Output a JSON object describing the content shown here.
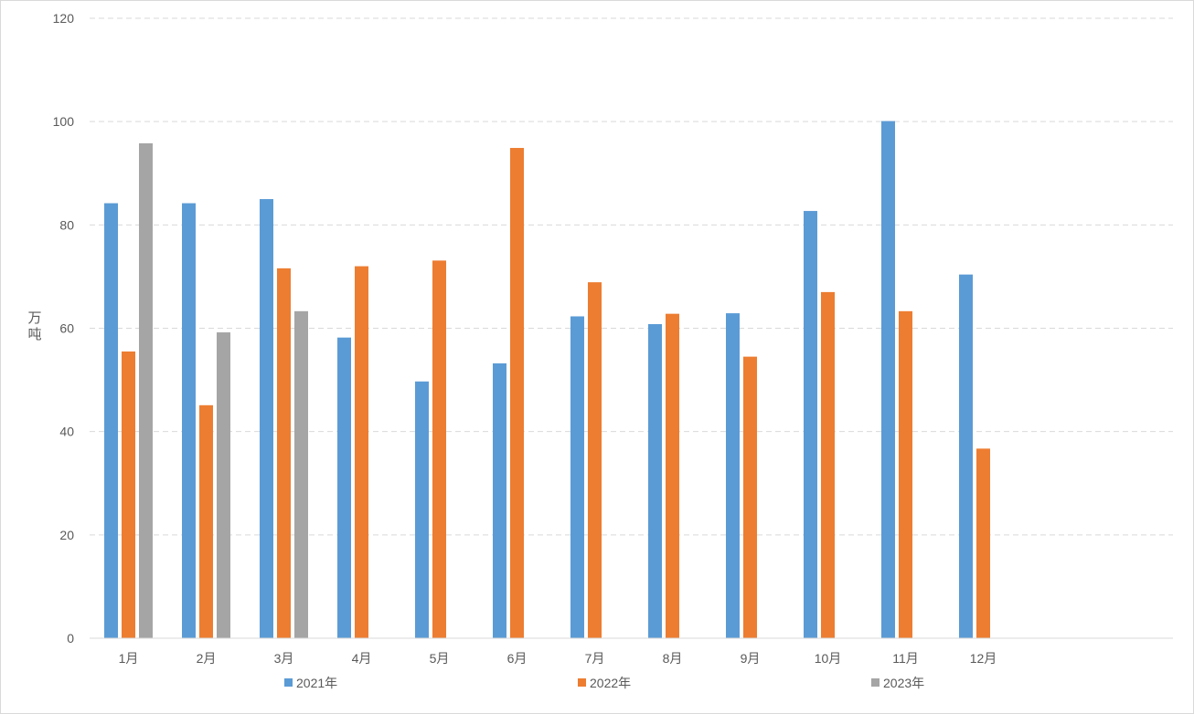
{
  "chart_data": {
    "type": "bar",
    "title": "",
    "xlabel": "",
    "ylabel": "万吨",
    "ylim": [
      0,
      120
    ],
    "yticks": [
      0,
      20,
      40,
      60,
      80,
      100,
      120
    ],
    "grid": true,
    "legend_position": "bottom",
    "categories": [
      "1月",
      "2月",
      "3月",
      "4月",
      "5月",
      "6月",
      "7月",
      "8月",
      "9月",
      "10月",
      "11月",
      "12月"
    ],
    "series": [
      {
        "name": "2021年",
        "color": "#5b9bd5",
        "values": [
          84.2,
          84.2,
          85.0,
          58.2,
          49.7,
          53.2,
          62.3,
          60.8,
          62.9,
          82.7,
          100.1,
          70.4
        ]
      },
      {
        "name": "2022年",
        "color": "#ed7d31",
        "values": [
          55.5,
          45.1,
          71.6,
          72.0,
          73.1,
          94.9,
          68.9,
          62.8,
          54.5,
          67.0,
          63.3,
          36.7
        ]
      },
      {
        "name": "2023年",
        "color": "#a5a5a5",
        "values": [
          95.8,
          59.2,
          63.3,
          null,
          null,
          null,
          null,
          null,
          null,
          null,
          null,
          null
        ]
      }
    ]
  }
}
